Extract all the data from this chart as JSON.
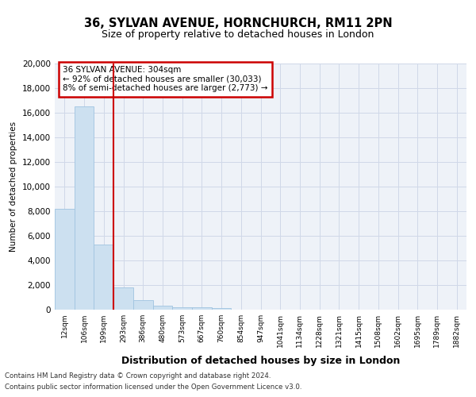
{
  "title": "36, SYLVAN AVENUE, HORNCHURCH, RM11 2PN",
  "subtitle": "Size of property relative to detached houses in London",
  "xlabel": "Distribution of detached houses by size in London",
  "ylabel": "Number of detached properties",
  "categories": [
    "12sqm",
    "106sqm",
    "199sqm",
    "293sqm",
    "386sqm",
    "480sqm",
    "573sqm",
    "667sqm",
    "760sqm",
    "854sqm",
    "947sqm",
    "1041sqm",
    "1134sqm",
    "1228sqm",
    "1321sqm",
    "1415sqm",
    "1508sqm",
    "1602sqm",
    "1695sqm",
    "1789sqm",
    "1882sqm"
  ],
  "values": [
    8200,
    16500,
    5300,
    1800,
    800,
    300,
    200,
    200,
    100,
    0,
    0,
    0,
    0,
    0,
    0,
    0,
    0,
    0,
    0,
    0,
    0
  ],
  "bar_color": "#cce0f0",
  "bar_edge_color": "#a0c4e0",
  "property_line_x": 2.5,
  "annotation_line1": "36 SYLVAN AVENUE: 304sqm",
  "annotation_line2": "← 92% of detached houses are smaller (30,033)",
  "annotation_line3": "8% of semi-detached houses are larger (2,773) →",
  "annotation_box_color": "#ffffff",
  "annotation_box_edgecolor": "#cc0000",
  "vline_color": "#cc0000",
  "ylim": [
    0,
    20000
  ],
  "yticks": [
    0,
    2000,
    4000,
    6000,
    8000,
    10000,
    12000,
    14000,
    16000,
    18000,
    20000
  ],
  "grid_color": "#d0d8e8",
  "background_color": "#eef2f8",
  "footer_line1": "Contains HM Land Registry data © Crown copyright and database right 2024.",
  "footer_line2": "Contains public sector information licensed under the Open Government Licence v3.0.",
  "title_fontsize": 10.5,
  "subtitle_fontsize": 9
}
